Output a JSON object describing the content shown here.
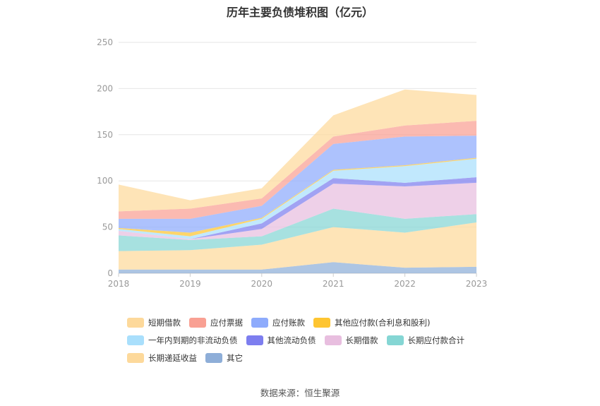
{
  "chart_data": {
    "type": "area",
    "stacked": true,
    "title": "历年主要负债堆积图（亿元）",
    "x": [
      "2018",
      "2019",
      "2020",
      "2021",
      "2022",
      "2023"
    ],
    "ylim": [
      0,
      250
    ],
    "yticks": [
      "0",
      "50",
      "100",
      "150",
      "200",
      "250"
    ],
    "grid": true,
    "legend_position": "bottom",
    "series": [
      {
        "name": "其它",
        "color": "#8eaed8",
        "values": [
          4,
          4,
          4,
          12,
          6,
          7
        ]
      },
      {
        "name": "长期递延收益",
        "color": "#fdd99b",
        "values": [
          20,
          21,
          27,
          38,
          38,
          48
        ]
      },
      {
        "name": "长期应付款合计",
        "color": "#85d6d4",
        "values": [
          17,
          11,
          9,
          20,
          15,
          9
        ]
      },
      {
        "name": "长期借款",
        "color": "#e8bedf",
        "values": [
          5,
          1,
          8,
          27,
          35,
          34
        ]
      },
      {
        "name": "其他流动负债",
        "color": "#7d7eef",
        "values": [
          0,
          0,
          6,
          6,
          4,
          6
        ]
      },
      {
        "name": "一年内到期的非流动负债",
        "color": "#a9dffc",
        "values": [
          2,
          3,
          5,
          8,
          18,
          20
        ]
      },
      {
        "name": "其他应付款(合利息和股利)",
        "color": "#fec531",
        "values": [
          1,
          4,
          1,
          1,
          1,
          1
        ]
      },
      {
        "name": "应付账款",
        "color": "#8eabfc",
        "values": [
          10,
          15,
          13,
          28,
          31,
          24
        ]
      },
      {
        "name": "应付票据",
        "color": "#f9a093",
        "values": [
          8,
          11,
          8,
          8,
          12,
          16
        ]
      },
      {
        "name": "短期借款",
        "color": "#fdd99b",
        "values": [
          29,
          9,
          11,
          23,
          39,
          28
        ]
      }
    ],
    "legend_order": [
      "短期借款",
      "应付票据",
      "应付账款",
      "其他应付款(合利息和股利)",
      "一年内到期的非流动负债",
      "其他流动负债",
      "长期借款",
      "长期应付款合计",
      "长期递延收益",
      "其它"
    ]
  },
  "footer": {
    "source": "数据来源：恒生聚源"
  }
}
